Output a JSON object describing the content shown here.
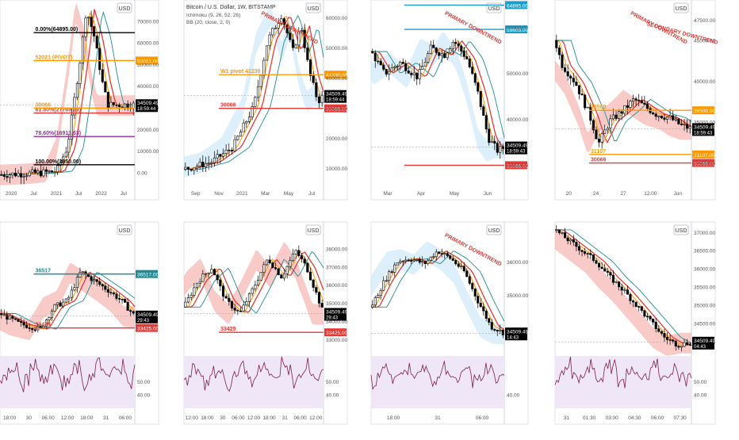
{
  "header": {
    "title": "Bitcoin / U.S. Dollar, 1W, BITSTAMP",
    "ichimoku": "Ichimoku (9, 26, 52, 26)",
    "bb": "BB (20, close, 2, 0)"
  },
  "colors": {
    "up": "#ffffff",
    "down": "#000000",
    "kumo_bear": "#f2a09a",
    "kumo_bull": "#bfe2f5",
    "red_line": "#e53935",
    "orange_line": "#ff9800",
    "teal_line": "#1e8c93",
    "green_line": "#1a9e7a",
    "price_bg": "#000000",
    "rsi_bg": "#efe6f7",
    "rsi_line": "#7b1f4d"
  },
  "chart_data": [
    {
      "id": "p1",
      "type": "candlestick",
      "timeframe": "1W",
      "x_ticks": [
        "2020",
        "Jul",
        "2021",
        "Jul",
        "2022",
        "Jul"
      ],
      "y_ticks": [
        0,
        10000,
        20000,
        30000,
        40000,
        50000,
        60000,
        70000
      ],
      "ylim": [
        -5000,
        80000
      ],
      "price_label": "34509.49",
      "countdown": "18:59:44",
      "levels": [
        {
          "label": "0.00%(64895.00)",
          "value": 64895,
          "color": "#000000"
        },
        {
          "label": "52021 (PIVOT)",
          "axis": "52021.00",
          "value": 52021,
          "color": "#ff9800"
        },
        {
          "label": "61.80%(27769.19)",
          "value": 27769.19,
          "color": "#e53935"
        },
        {
          "label": "78.60%(16913.63)",
          "value": 16913.63,
          "color": "#9c27b0"
        },
        {
          "label": "100.00%(3850.00)",
          "value": 3850,
          "color": "#000000"
        },
        {
          "label": "30066",
          "value": 30066,
          "color": "#ff9800"
        }
      ]
    },
    {
      "id": "p2",
      "type": "candlestick",
      "timeframe": "1D",
      "x_ticks": [
        "Sep",
        "Nov",
        "2021",
        "Mar",
        "May",
        "Jul"
      ],
      "y_ticks": [
        10000,
        20000,
        30000,
        40000,
        50000,
        60000
      ],
      "ylim": [
        5000,
        66000
      ],
      "price_label": "34509.49",
      "countdown": "18:59:44",
      "annotations": [
        "PRIMARY DOWNTREND"
      ],
      "levels": [
        {
          "label": "W1 pivot 41230",
          "axis": "41230.00",
          "value": 41230,
          "color": "#ff9800"
        },
        {
          "label": "30066",
          "axis": "30066.00",
          "value": 30066,
          "color": "#e53935"
        }
      ]
    },
    {
      "id": "p3",
      "type": "candlestick",
      "timeframe": "4H",
      "x_ticks": [
        "Mar",
        "Apr",
        "May",
        "Jun"
      ],
      "y_ticks": [
        30000,
        40000,
        50000,
        60000
      ],
      "ylim": [
        26000,
        66000
      ],
      "price_label": "34509.49",
      "countdown": "18:59:43",
      "annotations": [
        "PRIMARY DOWNTREND"
      ],
      "levels": [
        {
          "label": "64895.00",
          "value": 64895,
          "color": "#1e9cc7"
        },
        {
          "label": "59603.00",
          "value": 59603,
          "color": "#1e9cc7"
        },
        {
          "label": "30066.00",
          "value": 30066,
          "color": "#e53935"
        }
      ]
    },
    {
      "id": "p4",
      "type": "candlestick",
      "timeframe": "1H",
      "x_ticks": [
        "20",
        "24",
        "27",
        "12:00",
        "Jun"
      ],
      "y_ticks": [
        25000,
        30000,
        35000,
        40000,
        45000,
        47500
      ],
      "y_tick_labels": [
        "25000.00",
        "30000.00",
        "35000.00",
        "40000.00",
        "45000.00",
        "47500.00"
      ],
      "ylim": [
        27500,
        50000
      ],
      "price_label": "34509.49",
      "countdown": "18:59:43",
      "annotations": [
        "PRIMARY DOWNTREND",
        "SECONDARY DOWNTREND"
      ],
      "levels": [
        {
          "label": "36500",
          "axis": "36500.00",
          "value": 36500,
          "color": "#ff9800"
        },
        {
          "label": "31107",
          "axis": "31107.00",
          "value": 31107,
          "color": "#ff9800"
        },
        {
          "label": "30066",
          "axis": "30066.00",
          "value": 30066,
          "color": "#e53935"
        }
      ]
    },
    {
      "id": "p5",
      "type": "candlestick",
      "timeframe": "15m",
      "x_ticks": [
        "18:00",
        "30",
        "06:00",
        "12:00",
        "18:00",
        "31",
        "06:00"
      ],
      "y_ticks": [],
      "ylim": [
        32000,
        39500
      ],
      "price_label": "34509.49",
      "countdown": "29:43",
      "levels": [
        {
          "label": "36517",
          "axis": "36517.00",
          "value": 36517,
          "color": "#1e8c93"
        },
        {
          "label": "33425",
          "axis": "33425.00",
          "value": 33425,
          "color": "#e53935"
        }
      ],
      "rsi": {
        "y_ticks": [
          50,
          40
        ],
        "range": [
          30,
          70
        ]
      }
    },
    {
      "id": "p6",
      "type": "candlestick",
      "timeframe": "5m",
      "x_ticks": [
        "12:00",
        "18:00",
        "30",
        "06:00",
        "12:00",
        "18:00",
        "31",
        "06:00",
        "12:00"
      ],
      "y_ticks": [
        33000,
        34000,
        35000,
        36000,
        37000,
        38000
      ],
      "ylim": [
        32300,
        39500
      ],
      "price_label": "34509.49",
      "countdown": "29:43",
      "levels": [
        {
          "label": "33425",
          "axis": "33425.00",
          "value": 33425,
          "color": "#e53935"
        }
      ],
      "rsi": {
        "y_ticks": [
          50,
          40
        ],
        "range": [
          30,
          70
        ]
      }
    },
    {
      "id": "p7",
      "type": "candlestick",
      "timeframe": "3m",
      "x_ticks": [
        "18:00",
        "31",
        "06:00"
      ],
      "y_ticks": [
        34000,
        35000,
        36000
      ],
      "ylim": [
        33300,
        37200
      ],
      "price_label": "34509.49",
      "countdown": "14:43",
      "annotations": [
        "PRIMARY DOWNTREND"
      ],
      "rsi": {
        "y_ticks": [
          40
        ],
        "range": [
          30,
          70
        ]
      }
    },
    {
      "id": "p8",
      "type": "candlestick",
      "timeframe": "1m",
      "x_ticks": [
        "31",
        "01:30",
        "03:00",
        "04:30",
        "06:00",
        "07:30"
      ],
      "y_ticks": [
        34000,
        34500,
        35000,
        35500,
        36000,
        36500,
        37000
      ],
      "ylim": [
        33700,
        37300
      ],
      "price_label": "34509.49",
      "countdown": "04:43",
      "rsi": {
        "y_ticks": [
          50,
          40
        ],
        "range": [
          30,
          70
        ]
      }
    }
  ]
}
